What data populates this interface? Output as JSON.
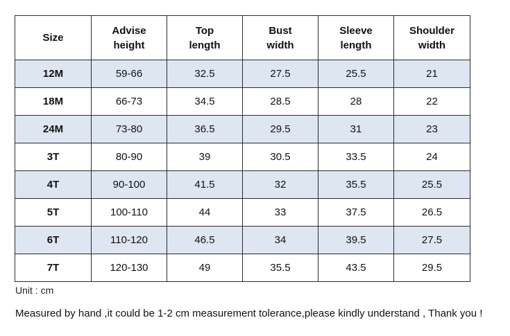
{
  "table": {
    "headers": [
      "Size",
      "Advise\nheight",
      "Top\nlength",
      "Bust\nwidth",
      "Sleeve\nlength",
      "Shoulder\nwidth"
    ],
    "rows": [
      [
        "12M",
        "59-66",
        "32.5",
        "27.5",
        "25.5",
        "21"
      ],
      [
        "18M",
        "66-73",
        "34.5",
        "28.5",
        "28",
        "22"
      ],
      [
        "24M",
        "73-80",
        "36.5",
        "29.5",
        "31",
        "23"
      ],
      [
        "3T",
        "80-90",
        "39",
        "30.5",
        "33.5",
        "24"
      ],
      [
        "4T",
        "90-100",
        "41.5",
        "32",
        "35.5",
        "25.5"
      ],
      [
        "5T",
        "100-110",
        "44",
        "33",
        "37.5",
        "26.5"
      ],
      [
        "6T",
        "110-120",
        "46.5",
        "34",
        "39.5",
        "27.5"
      ],
      [
        "7T",
        "120-130",
        "49",
        "35.5",
        "43.5",
        "29.5"
      ]
    ],
    "shaded_row_color": "#dde6f1",
    "border_color": "#2b2b2b"
  },
  "notes": {
    "unit": "Unit : cm",
    "measurement": "Measured by hand ,it could be 1-2 cm measurement tolerance,please kindly understand , Thank you !"
  }
}
